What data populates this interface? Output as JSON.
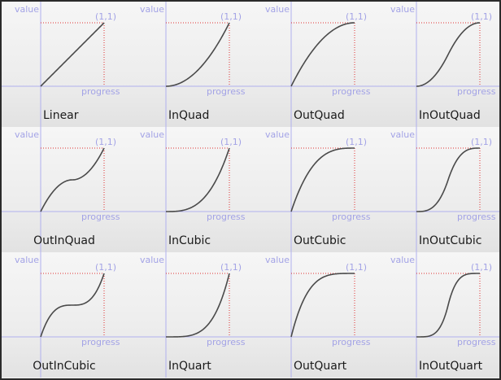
{
  "axis_labels": {
    "value": "value",
    "progress": "progress",
    "endpoint": "(1,1)"
  },
  "curves": [
    {
      "name": "Linear"
    },
    {
      "name": "InQuad"
    },
    {
      "name": "OutQuad"
    },
    {
      "name": "InOutQuad"
    },
    {
      "name": "OutInQuad"
    },
    {
      "name": "InCubic"
    },
    {
      "name": "OutCubic"
    },
    {
      "name": "InOutCubic"
    },
    {
      "name": "OutInCubic"
    },
    {
      "name": "InQuart"
    },
    {
      "name": "OutQuart"
    },
    {
      "name": "InOutQuart"
    }
  ],
  "colors": {
    "curve": "#4a4a4a",
    "axis": "#b0b0ee",
    "guide": "#e03030",
    "label": "#a3a3e6"
  }
}
